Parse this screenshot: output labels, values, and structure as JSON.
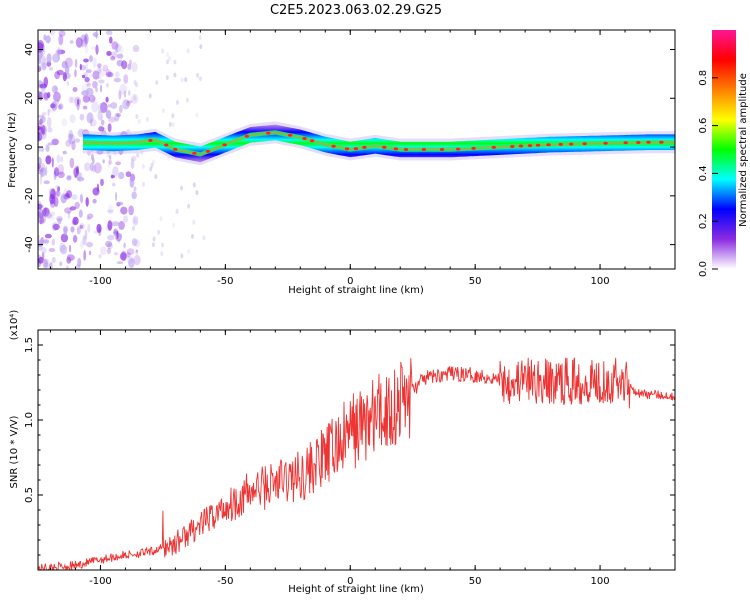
{
  "title": "C2E5.2023.063.02.29.G25",
  "chart_data": [
    {
      "type": "heatmap",
      "xlabel": "Height of straight line (km)",
      "ylabel": "Frequency (Hz)",
      "xlim": [
        -125,
        130
      ],
      "ylim": [
        -50,
        48
      ],
      "x_ticks": [
        -100,
        -50,
        0,
        50,
        100
      ],
      "x_tick_labels": [
        "-100",
        "-50",
        "0",
        "50",
        "100"
      ],
      "y_ticks": [
        -40,
        -20,
        0,
        20,
        40
      ],
      "y_tick_labels": [
        "-40",
        "-20",
        "0",
        "20",
        "40"
      ],
      "colorbar": {
        "label": "Normalized spectral amplitude",
        "range": [
          0,
          1
        ],
        "ticks": [
          0.0,
          0.2,
          0.4,
          0.6,
          0.8
        ],
        "tick_labels": [
          "0.0",
          "0.2",
          "0.4",
          "0.6",
          "0.8"
        ],
        "colormap": [
          "#ffffff",
          "#8a2be2",
          "#0000ff",
          "#00ffff",
          "#00ff00",
          "#ffff00",
          "#ff8000",
          "#ff0000",
          "#ff1493"
        ]
      },
      "ridge": {
        "description_values": "dominant frequency (Hz) versus height (km)",
        "x": [
          -105,
          -95,
          -85,
          -78,
          -70,
          -60,
          -50,
          -40,
          -30,
          -20,
          -10,
          0,
          10,
          20,
          40,
          60,
          80,
          100,
          120,
          130
        ],
        "y": [
          2,
          1.5,
          2,
          3,
          -1,
          -3,
          1,
          5,
          6,
          4,
          1,
          -1,
          0.5,
          -1,
          -1,
          0,
          1,
          1.5,
          2,
          2
        ]
      }
    },
    {
      "type": "line",
      "xlabel": "Height of straight line (km)",
      "ylabel": "SNR (10 * V/V)",
      "y_multiplier": "(x10⁴)",
      "xlim": [
        -125,
        130
      ],
      "ylim": [
        0,
        1.6
      ],
      "x_ticks": [
        -100,
        -50,
        0,
        50,
        100
      ],
      "x_tick_labels": [
        "-100",
        "-50",
        "0",
        "50",
        "100"
      ],
      "y_ticks": [
        0.5,
        1.0,
        1.5
      ],
      "y_tick_labels": [
        "0.5",
        "1.0",
        "1.5"
      ],
      "series": [
        {
          "color": "#ee3333",
          "x": [
            -125,
            -110,
            -100,
            -90,
            -80,
            -70,
            -60,
            -50,
            -40,
            -30,
            -20,
            -10,
            0,
            10,
            20,
            30,
            40,
            50,
            60,
            70,
            80,
            90,
            100,
            110,
            115,
            120,
            130
          ],
          "y": [
            0.01,
            0.03,
            0.07,
            0.1,
            0.12,
            0.18,
            0.3,
            0.42,
            0.52,
            0.58,
            0.63,
            0.75,
            0.92,
            1.02,
            1.12,
            1.28,
            1.31,
            1.3,
            1.27,
            1.26,
            1.25,
            1.26,
            1.27,
            1.26,
            1.18,
            1.17,
            1.16
          ]
        }
      ]
    }
  ]
}
